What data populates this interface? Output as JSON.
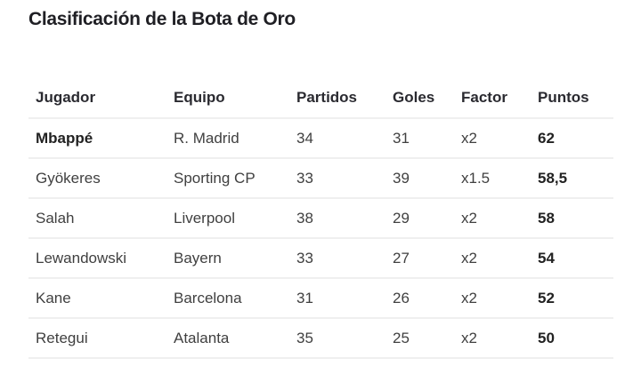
{
  "title": "Clasificación de la Bota de Oro",
  "table": {
    "headers": [
      "Jugador",
      "Equipo",
      "Partidos",
      "Goles",
      "Factor",
      "Puntos"
    ],
    "rows": [
      {
        "player": "Mbappé",
        "team": "R. Madrid",
        "matches": "34",
        "goals": "31",
        "factor": "x2",
        "points": "62"
      },
      {
        "player": "Gyökeres",
        "team": "Sporting CP",
        "matches": "33",
        "goals": "39",
        "factor": "x1.5",
        "points": "58,5"
      },
      {
        "player": "Salah",
        "team": "Liverpool",
        "matches": "38",
        "goals": "29",
        "factor": "x2",
        "points": "58"
      },
      {
        "player": "Lewandowski",
        "team": "Bayern",
        "matches": "33",
        "goals": "27",
        "factor": "x2",
        "points": "54"
      },
      {
        "player": "Kane",
        "team": "Barcelona",
        "matches": "31",
        "goals": "26",
        "factor": "x2",
        "points": "52"
      },
      {
        "player": "Retegui",
        "team": "Atalanta",
        "matches": "35",
        "goals": "25",
        "factor": "x2",
        "points": "50"
      }
    ]
  }
}
